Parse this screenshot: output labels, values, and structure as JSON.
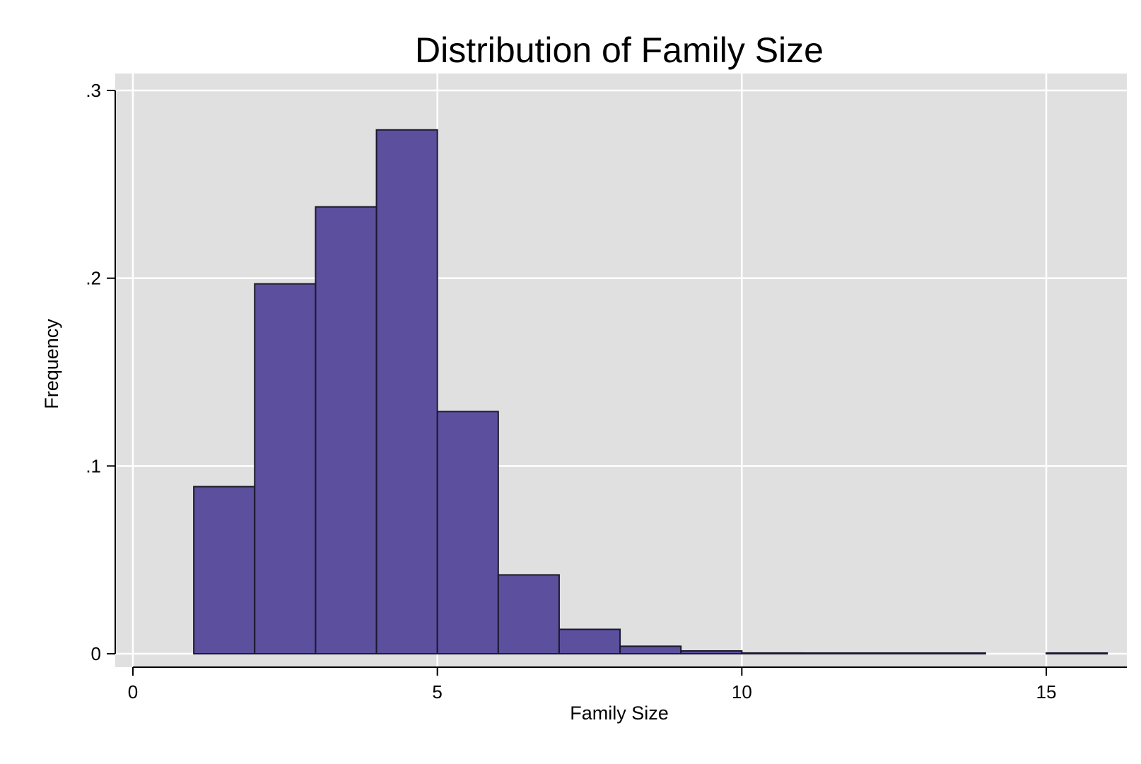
{
  "chart_data": {
    "type": "bar",
    "title": "Distribution of Family Size",
    "xlabel": "Family Size",
    "ylabel": "Frequency",
    "xlim": [
      0,
      16
    ],
    "ylim": [
      0,
      0.3
    ],
    "xticks": [
      0,
      5,
      10,
      15
    ],
    "xtick_labels": [
      "0",
      "5",
      "10",
      "15"
    ],
    "yticks": [
      0,
      0.1,
      0.2,
      0.3
    ],
    "ytick_labels": [
      "0",
      ".1",
      ".2",
      ".3"
    ],
    "grid": true,
    "bin_width": 1,
    "bins": [
      {
        "start": 1,
        "end": 2,
        "value": 0.089
      },
      {
        "start": 2,
        "end": 3,
        "value": 0.197
      },
      {
        "start": 3,
        "end": 4,
        "value": 0.238
      },
      {
        "start": 4,
        "end": 5,
        "value": 0.279
      },
      {
        "start": 5,
        "end": 6,
        "value": 0.129
      },
      {
        "start": 6,
        "end": 7,
        "value": 0.042
      },
      {
        "start": 7,
        "end": 8,
        "value": 0.013
      },
      {
        "start": 8,
        "end": 9,
        "value": 0.004
      },
      {
        "start": 9,
        "end": 10,
        "value": 0.0015
      },
      {
        "start": 10,
        "end": 11,
        "value": 0.0004
      },
      {
        "start": 11,
        "end": 12,
        "value": 0.0002
      },
      {
        "start": 12,
        "end": 13,
        "value": 0.0001
      },
      {
        "start": 13,
        "end": 14,
        "value": 0.0001
      },
      {
        "start": 15,
        "end": 16,
        "value": 0.0001
      }
    ]
  },
  "colors": {
    "bar_fill": "#5b4f9e",
    "bar_stroke": "#1a1a2e",
    "plot_background": "#e0e0e0",
    "grid": "#ffffff",
    "axis": "#000000"
  }
}
